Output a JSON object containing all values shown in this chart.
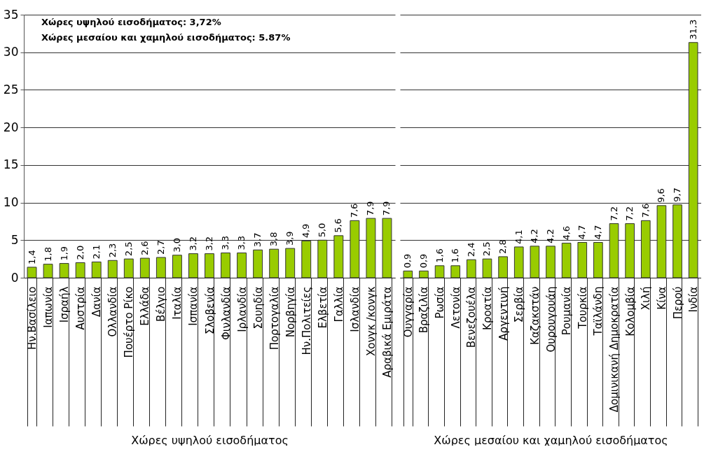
{
  "chart_data": [
    {
      "type": "bar",
      "annotations": [
        "Χώρες υψηλού εισοδήματος: 3,72%",
        "Χώρες μεσαίου και χαμηλού εισοδήματος: 5.87%"
      ],
      "xlabel": "Χώρες υψηλού εισοδήματος",
      "categories": [
        "Ην.Βασίλειο",
        "Ιαπωνία",
        "Ισραήλ",
        "Αυστρία",
        "Δανία",
        "Ολλανδία",
        "Πουέρτο Ρίκο",
        "Ελλάδα",
        "Βέλγιο",
        "Ιταλία",
        "Ισπανία",
        "Σλοβενία",
        "Φινλανδία",
        "Ιρλανδία",
        "Σουηδία",
        "Πορτογαλία",
        "Νορβηγία",
        "Ην.Πολιτείες",
        "Ελβετία",
        "Γαλλία",
        "Ισλανδία",
        "Χονγκ /κονγκ",
        "Αραβικά Εμιράτα"
      ],
      "values": [
        1.4,
        1.8,
        1.9,
        2.0,
        2.1,
        2.3,
        2.5,
        2.6,
        2.7,
        3.0,
        3.2,
        3.2,
        3.3,
        3.3,
        3.7,
        3.8,
        3.9,
        4.9,
        5.0,
        5.6,
        7.6,
        7.9,
        7.9
      ],
      "value_labels": [
        "1,4",
        "1,8",
        "1,9",
        "2,0",
        "2,1",
        "2,3",
        "2,5",
        "2,6",
        "2,7",
        "3,0",
        "3,2",
        "3,2",
        "3,3",
        "3,3",
        "3,7",
        "3,8",
        "3,9",
        "4,9",
        "5,0",
        "5,6",
        "7,6",
        "7,9",
        "7,9"
      ],
      "color": "#99cc00",
      "ylim": [
        0,
        35
      ],
      "yticks": [
        0,
        5,
        10,
        15,
        20,
        25,
        30,
        35
      ],
      "grid": "y"
    },
    {
      "type": "bar",
      "xlabel": "Χώρες μεσαίου και χαμηλού εισοδήματος",
      "categories": [
        "Ουγγαρία",
        "Βραζιλία",
        "Ρωσία",
        "Λετονία",
        "Βενεζουέλα",
        "Κροατία",
        "Αργεντινή",
        "Σερβία",
        "Καζακστάν",
        "Ουρουγουάη",
        "Ρουμανία",
        "Τουρκία",
        "Ταϊλάνδη",
        "Δομινικανή Δημοκρατία",
        "Κολομβία",
        "Χιλή",
        "Κίνα",
        "Περού",
        "Ινδία"
      ],
      "values": [
        0.9,
        0.9,
        1.6,
        1.6,
        2.4,
        2.5,
        2.8,
        4.1,
        4.2,
        4.2,
        4.6,
        4.7,
        4.7,
        7.2,
        7.2,
        7.6,
        9.6,
        9.7,
        31.3
      ],
      "value_labels": [
        "0,9",
        "0,9",
        "1,6",
        "1,6",
        "2,4",
        "2,5",
        "2,8",
        "4,1",
        "4,2",
        "4,2",
        "4,6",
        "4,7",
        "4,7",
        "7,2",
        "7,2",
        "7,6",
        "9,6",
        "9,7",
        "31,3"
      ],
      "color": "#99cc00",
      "ylim": [
        0,
        35
      ],
      "yticks": [
        0,
        5,
        10,
        15,
        20,
        25,
        30,
        35
      ],
      "grid": "y",
      "tick_labels": "x"
    }
  ]
}
